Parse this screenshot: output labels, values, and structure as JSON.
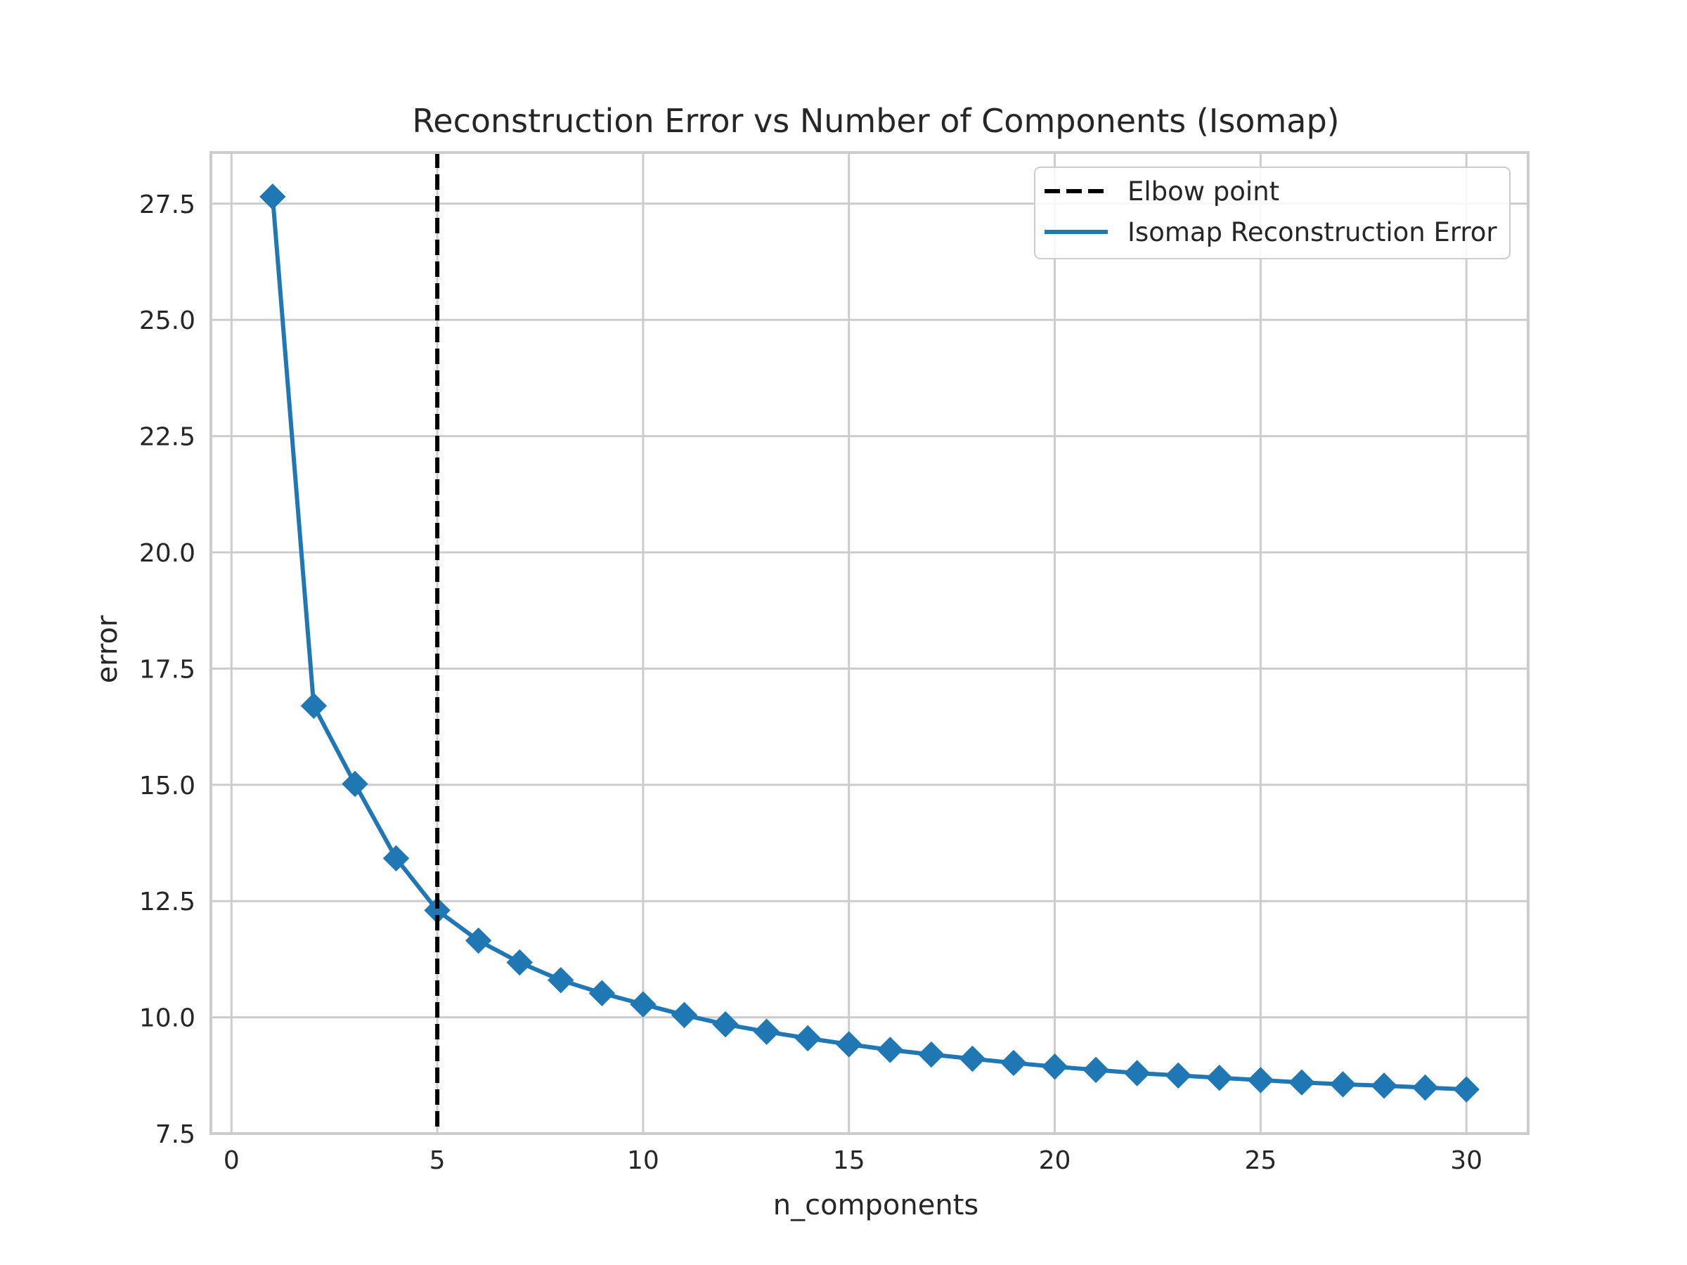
{
  "chart_data": {
    "type": "line",
    "title": "Reconstruction Error vs Number of Components (Isomap)",
    "xlabel": "n_components",
    "ylabel": "error",
    "xlim": [
      -0.5,
      31.5
    ],
    "ylim": [
      7.5,
      28.6
    ],
    "xticks": [
      0,
      5,
      10,
      15,
      20,
      25,
      30
    ],
    "yticks": [
      7.5,
      10.0,
      12.5,
      15.0,
      17.5,
      20.0,
      22.5,
      25.0,
      27.5
    ],
    "ytick_labels": [
      "7.5",
      "10.0",
      "12.5",
      "15.0",
      "17.5",
      "20.0",
      "22.5",
      "25.0",
      "27.5"
    ],
    "grid": true,
    "legend_position": "top-right",
    "series": [
      {
        "name": "Isomap Reconstruction Error",
        "color": "#1f77b4",
        "marker": "diamond",
        "x": [
          1,
          2,
          3,
          4,
          5,
          6,
          7,
          8,
          9,
          10,
          11,
          12,
          13,
          14,
          15,
          16,
          17,
          18,
          19,
          20,
          21,
          22,
          23,
          24,
          25,
          26,
          27,
          28,
          29,
          30
        ],
        "y": [
          27.65,
          16.7,
          15.02,
          13.42,
          12.3,
          11.65,
          11.18,
          10.8,
          10.52,
          10.28,
          10.05,
          9.85,
          9.69,
          9.55,
          9.42,
          9.3,
          9.2,
          9.11,
          9.02,
          8.94,
          8.87,
          8.8,
          8.75,
          8.7,
          8.65,
          8.6,
          8.56,
          8.53,
          8.49,
          8.45
        ]
      }
    ],
    "annotations": [
      {
        "type": "vline",
        "x": 5,
        "name": "Elbow point",
        "color": "#000000",
        "style": "dashed"
      }
    ]
  }
}
